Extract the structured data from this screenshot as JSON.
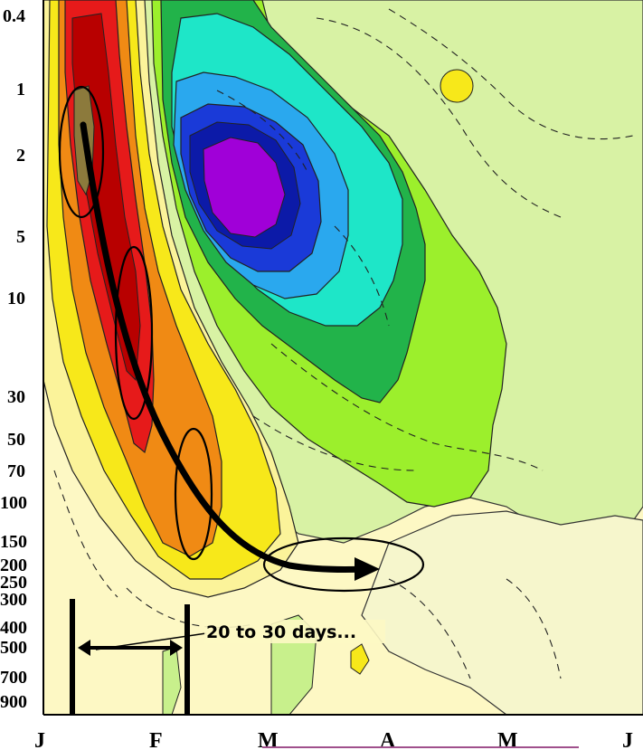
{
  "chart_data": {
    "type": "heatmap",
    "title": "",
    "x_tick_labels": [
      "J",
      "F",
      "M",
      "A",
      "M",
      "J"
    ],
    "y_tick_labels": [
      "0.4",
      "1",
      "2",
      "5",
      "10",
      "30",
      "50",
      "70",
      "100",
      "150",
      "200",
      "250",
      "300",
      "400",
      "500",
      "700",
      "900"
    ],
    "y_scale": "log",
    "y_direction": "pressure decreasing upward",
    "annotation": "20 to 30 days...",
    "colors": {
      "dark_red": "#cc0000",
      "red": "#e61a1a",
      "orange": "#f08a14",
      "yellow": "#f7e81a",
      "pale_yellow": "#fdf8c4",
      "light_green": "#c8f08c",
      "lime": "#9cef2c",
      "green": "#22b34a",
      "teal": "#1ee6c8",
      "light_blue": "#2aa8ee",
      "blue": "#1a3ad8",
      "purple": "#a000d8",
      "brown": "#8c7a3c"
    }
  }
}
